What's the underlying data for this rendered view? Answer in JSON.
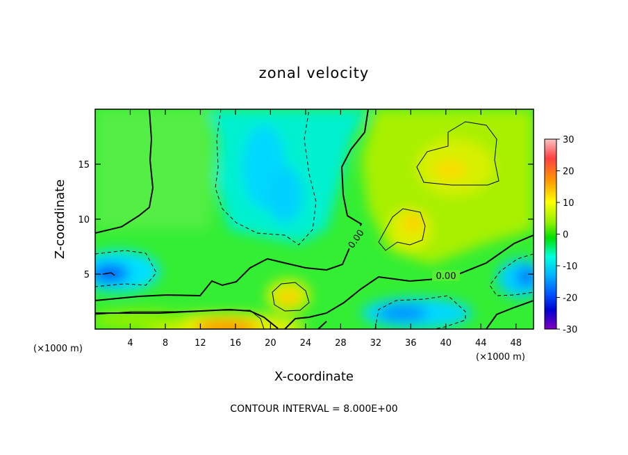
{
  "chart_data": {
    "type": "heatmap",
    "title": "zonal velocity",
    "xlabel": "X-coordinate",
    "ylabel": "Z-coordinate",
    "x_unit_left": "(×1000 m)",
    "x_unit_right": "(×1000 m)",
    "xlim": [
      0,
      50
    ],
    "ylim": [
      0,
      20
    ],
    "x_ticks": [
      4,
      8,
      12,
      16,
      20,
      24,
      28,
      32,
      36,
      40,
      44,
      48
    ],
    "y_ticks": [
      5,
      10,
      15
    ],
    "colorbar": {
      "range": [
        -30,
        30
      ],
      "ticks": [
        30,
        20,
        10,
        0,
        -10,
        -20,
        -30
      ],
      "colors": [
        "#f7b0b0",
        "#ff3030",
        "#ff8c00",
        "#ffff00",
        "#7ff700",
        "#00e000",
        "#00ffff",
        "#00a8ff",
        "#0040ff",
        "#0000d0",
        "#8000c0"
      ]
    },
    "contour_interval_text": "CONTOUR INTERVAL = 8.000E+00",
    "contour_labels": [
      {
        "value": "0.00",
        "x": 29.5,
        "z": 8.0
      },
      {
        "value": "0.00",
        "x": 40.0,
        "z": 4.9
      }
    ],
    "features": [
      {
        "name": "jet-low-level",
        "x": 16,
        "z": 0.5,
        "value": 14
      },
      {
        "name": "min-left",
        "x": 1.5,
        "z": 5,
        "value": -14
      },
      {
        "name": "max-mid",
        "x": 22,
        "z": 3.2,
        "value": 10
      },
      {
        "name": "max-upper-right",
        "x": 40.5,
        "z": 14.5,
        "value": 11
      },
      {
        "name": "max-mid-right",
        "x": 36,
        "z": 9.5,
        "value": 10
      },
      {
        "name": "min-bottom-right",
        "x": 36,
        "z": 1.5,
        "value": -12
      },
      {
        "name": "min-right",
        "x": 49,
        "z": 5,
        "value": -12
      },
      {
        "name": "min-upper-center",
        "x": 20,
        "z": 15.5,
        "value": -6
      }
    ]
  }
}
